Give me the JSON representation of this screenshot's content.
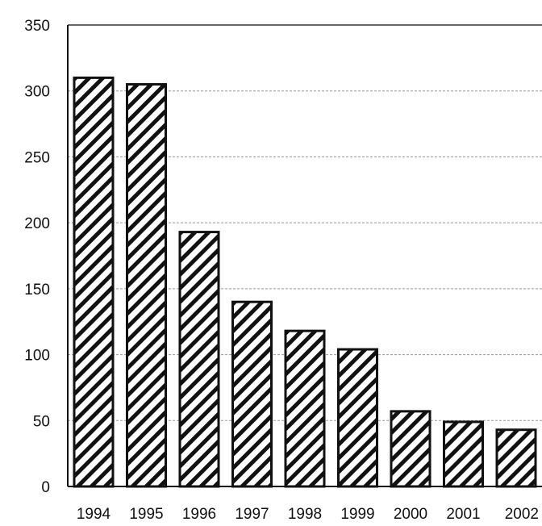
{
  "chart_data": {
    "type": "bar",
    "title": "",
    "xlabel": "",
    "ylabel": "",
    "categories": [
      "1994",
      "1995",
      "1996",
      "1997",
      "1998",
      "1999",
      "2000",
      "2001",
      "2002"
    ],
    "values": [
      310,
      305,
      193,
      140,
      118,
      104,
      57,
      49,
      43
    ],
    "ylim": [
      0,
      350
    ],
    "yticks": [
      0,
      50,
      100,
      150,
      200,
      250,
      300,
      350
    ],
    "grid": true,
    "legend": "none",
    "bar_pattern": "diagonal-hatch",
    "colors": {
      "bar_fill": "#ffffff",
      "bar_hatch": "#111111",
      "gridline": "#9a9a9a",
      "axis": "#111111"
    }
  }
}
